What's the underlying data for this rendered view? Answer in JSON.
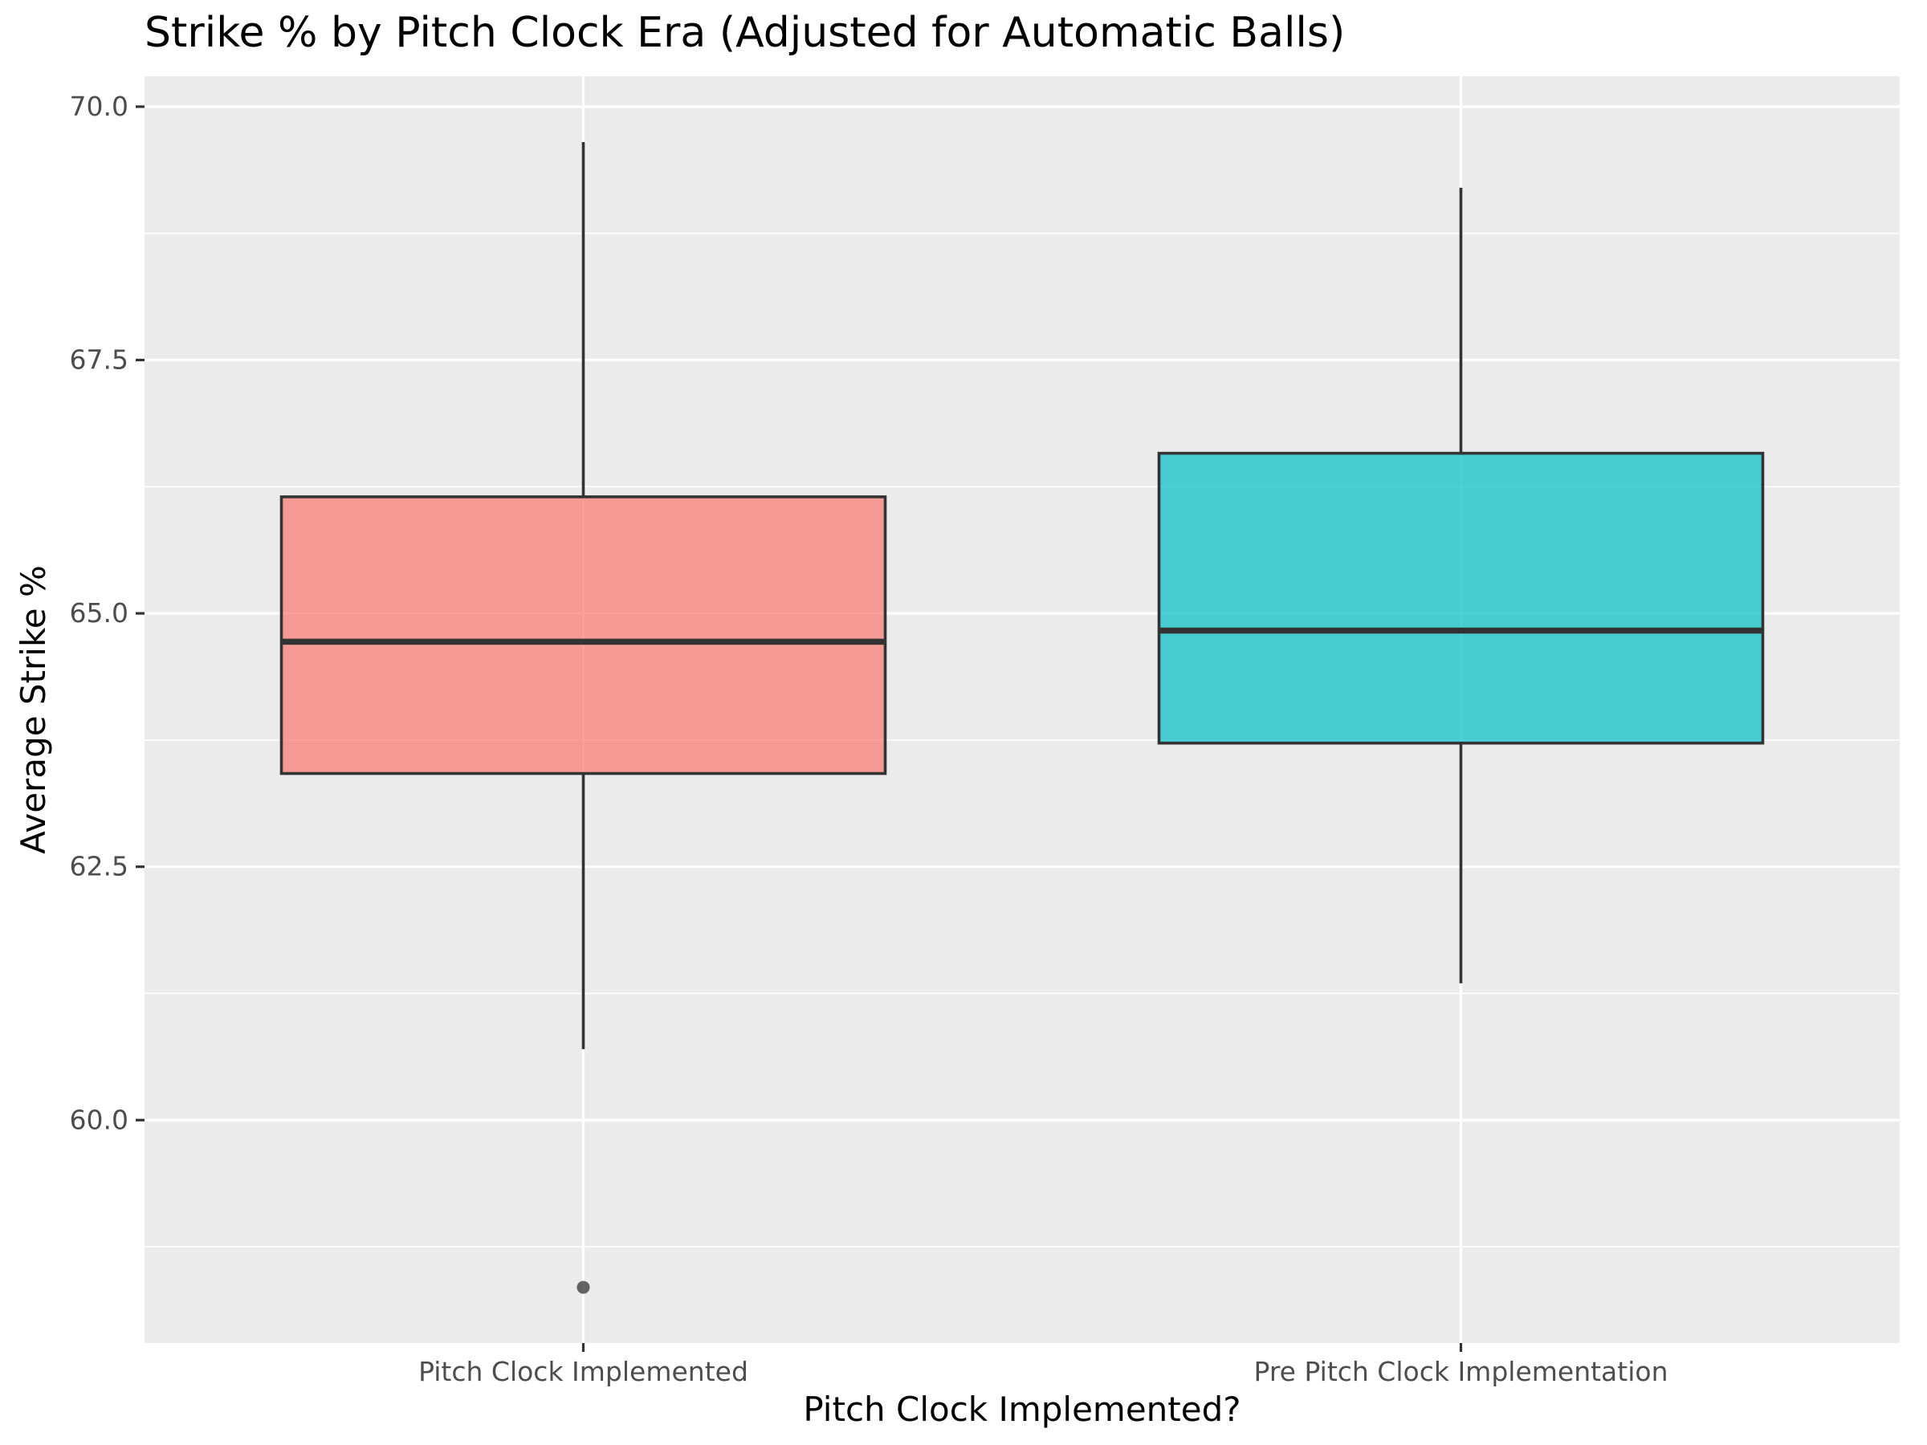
{
  "chart_data": {
    "type": "boxplot",
    "title": "Strike % by Pitch Clock Era (Adjusted for Automatic Balls)",
    "xlabel": "Pitch Clock Implemented?",
    "ylabel": "Average Strike %",
    "ylim": [
      57.8,
      70.3
    ],
    "y_ticks": [
      60.0,
      62.5,
      65.0,
      67.5,
      70.0
    ],
    "y_tick_labels": [
      "60.0",
      "62.5",
      "65.0",
      "67.5",
      "70.0"
    ],
    "grid": true,
    "legend": "none",
    "categories": [
      "Pitch Clock Implemented",
      "Pre Pitch Clock Implementation"
    ],
    "boxes": [
      {
        "category": "Pitch Clock Implemented",
        "whisker_low": 60.7,
        "q1": 63.42,
        "median": 64.72,
        "q3": 66.15,
        "whisker_high": 69.65,
        "outliers": [
          58.35
        ],
        "color": "#F8766D"
      },
      {
        "category": "Pre Pitch Clock Implementation",
        "whisker_low": 61.35,
        "q1": 63.72,
        "median": 64.83,
        "q3": 66.58,
        "whisker_high": 69.2,
        "outliers": [],
        "color": "#00BFC4"
      }
    ],
    "panel_background": "#EBEBEB",
    "grid_color": "#FFFFFF"
  }
}
